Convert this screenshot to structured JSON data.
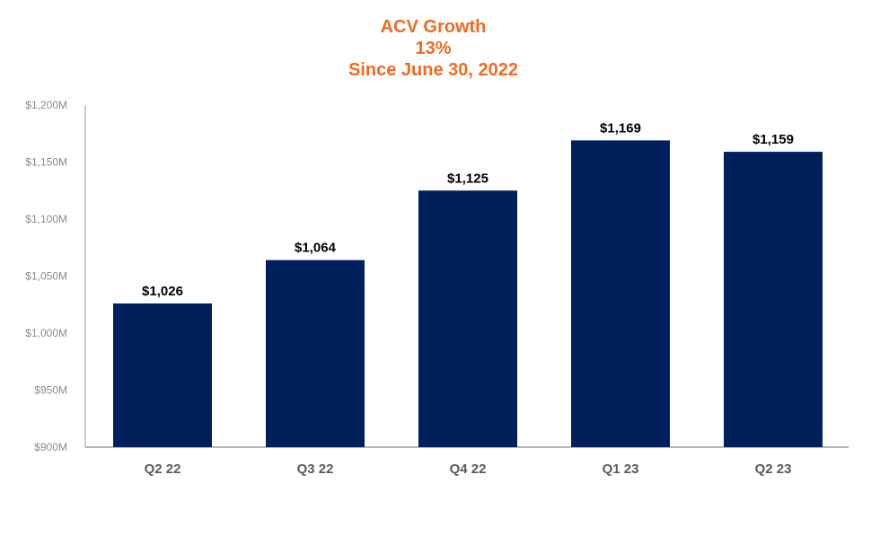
{
  "chart_data": {
    "type": "bar",
    "title_lines": [
      "ACV Growth",
      "13%",
      "Since June 30, 2022"
    ],
    "categories": [
      "Q2 22",
      "Q3 22",
      "Q4 22",
      "Q1 23",
      "Q2 23"
    ],
    "values": [
      1026,
      1064,
      1125,
      1169,
      1159
    ],
    "data_labels": [
      "$1,026",
      "$1,064",
      "$1,125",
      "$1,169",
      "$1,159"
    ],
    "ylim": [
      900,
      1200
    ],
    "y_ticks": [
      900,
      950,
      1000,
      1050,
      1100,
      1150,
      1200
    ],
    "y_tick_labels": [
      "$900M",
      "$950M",
      "$1,000M",
      "$1,050M",
      "$1,100M",
      "$1,150M",
      "$1,200M"
    ],
    "xlabel": "",
    "ylabel": "",
    "grid": false,
    "legend": "none",
    "colors": {
      "bar": "#00205b",
      "title": "#f26b21",
      "axis": "#9e9e9e"
    }
  }
}
